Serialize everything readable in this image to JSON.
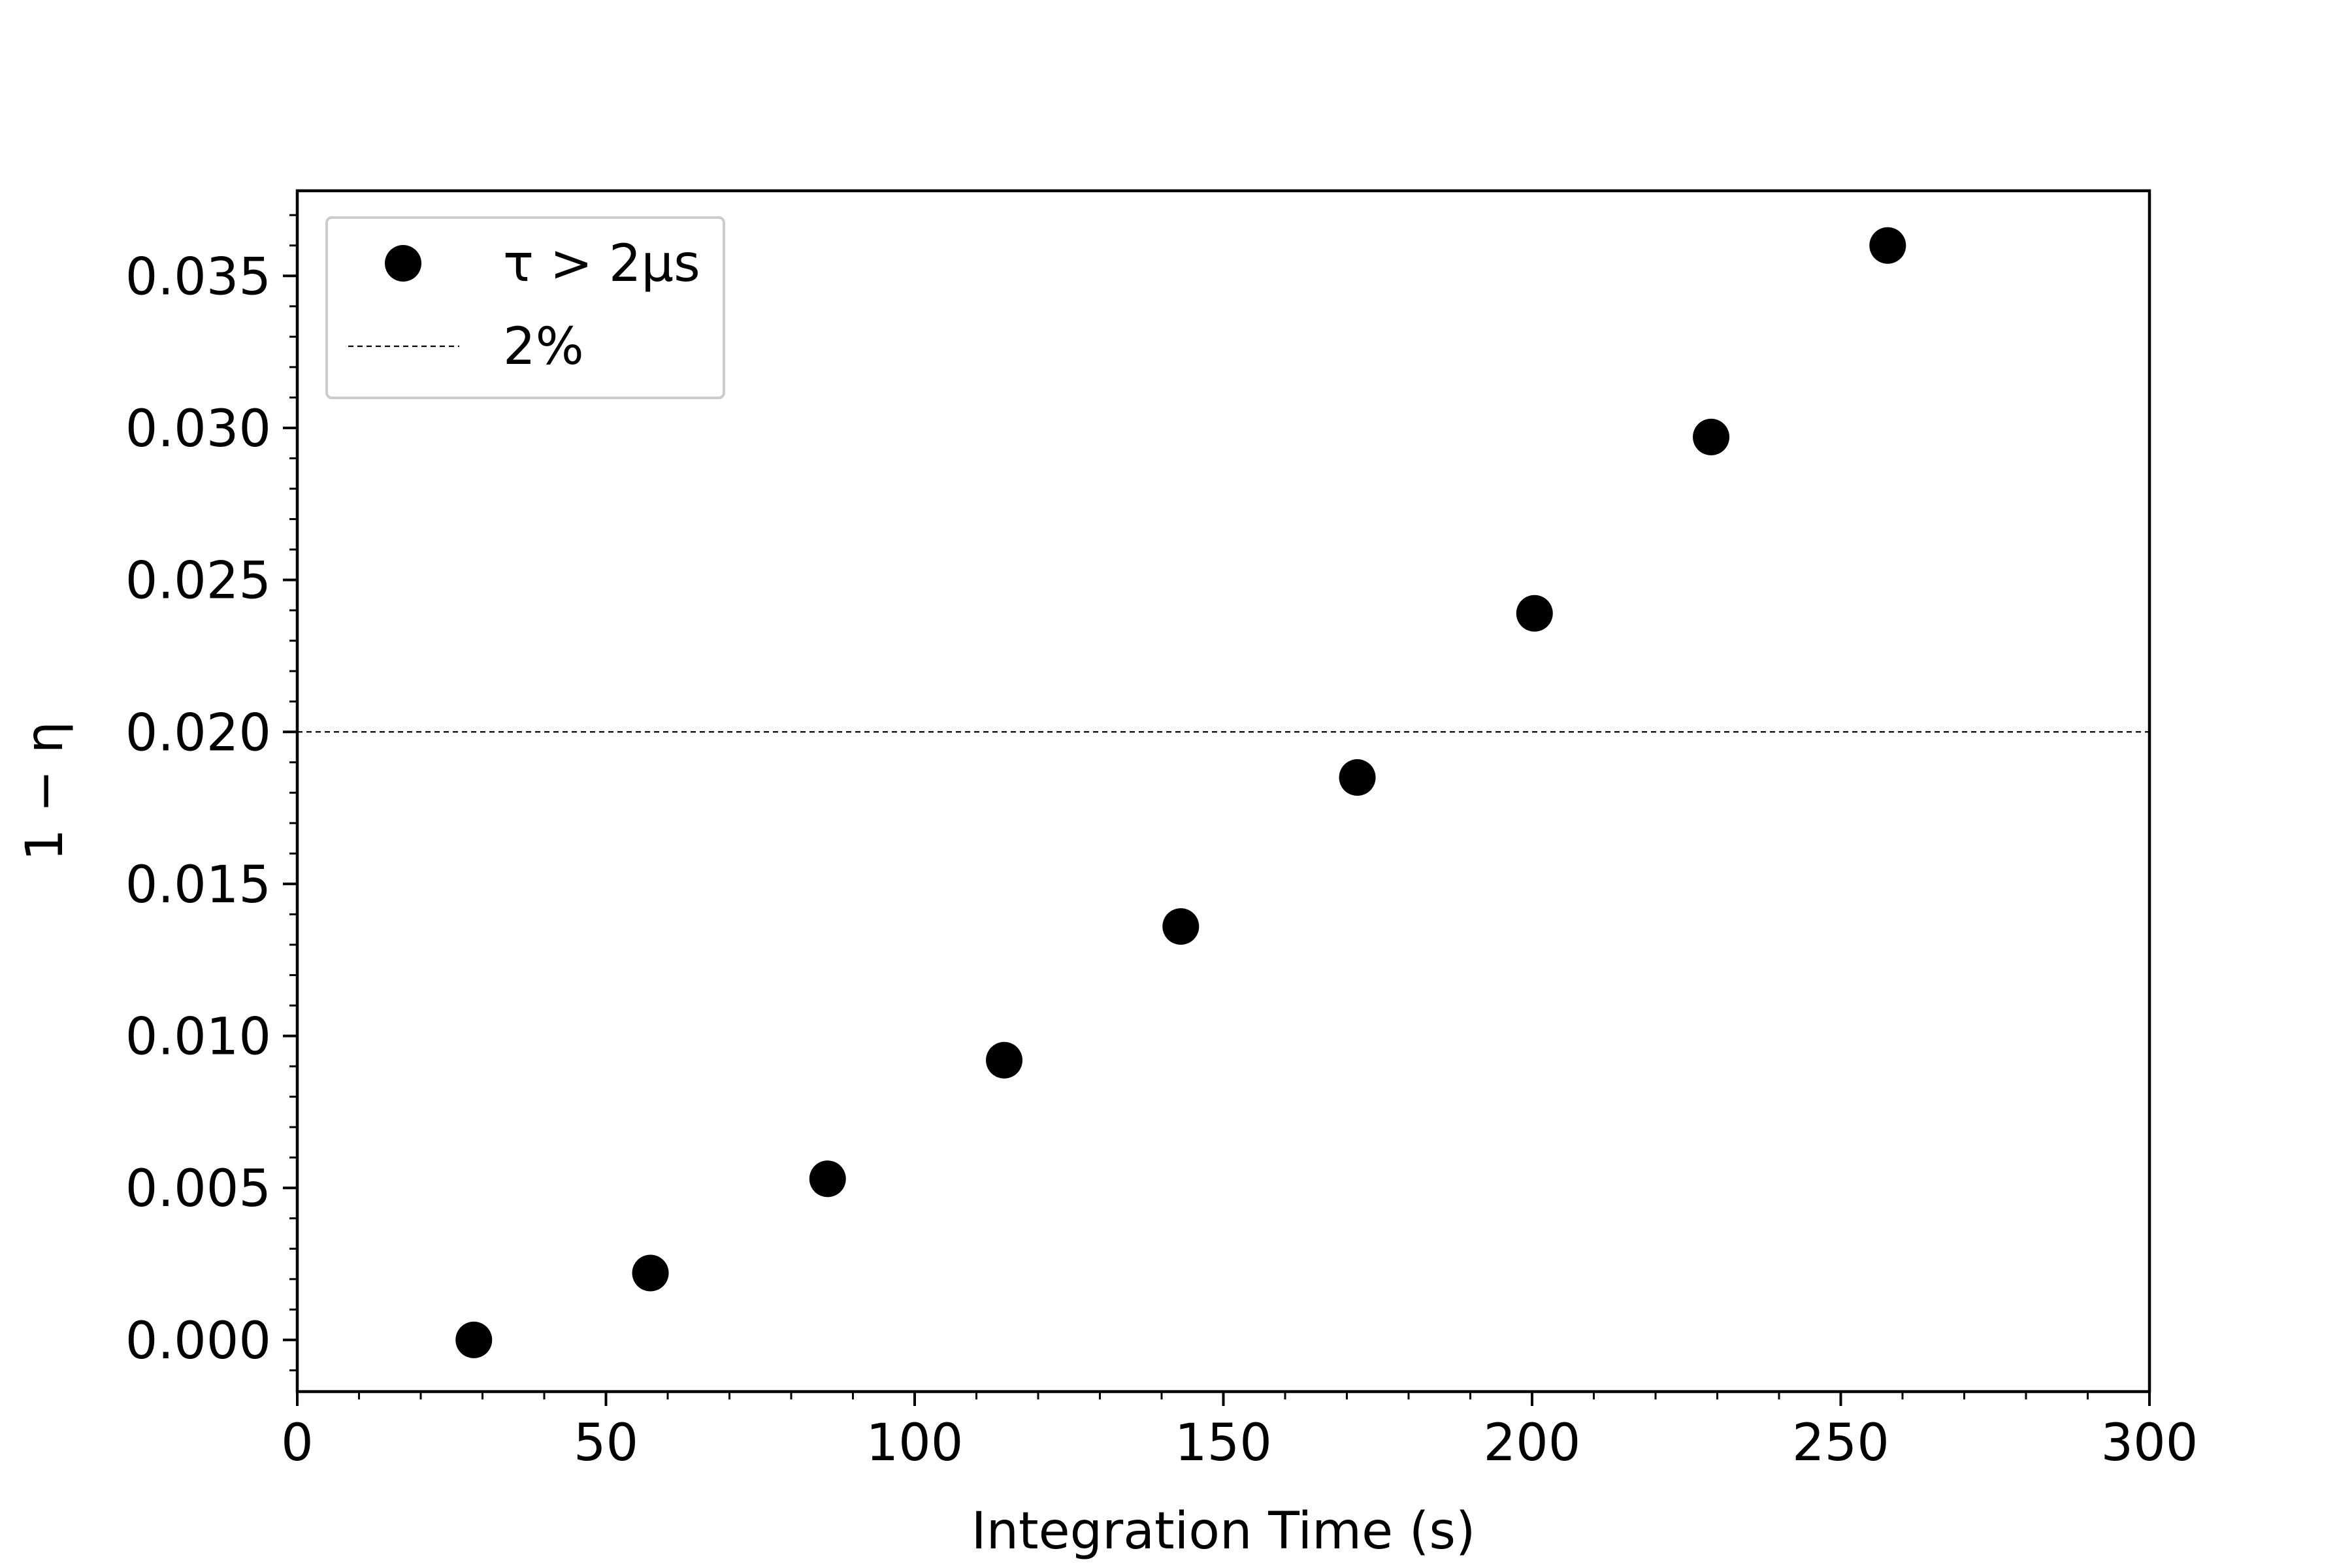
{
  "chart_data": {
    "type": "scatter",
    "xlabel": "Integration Time (s)",
    "ylabel": "1 − η",
    "xlim": [
      0,
      300
    ],
    "ylim": [
      -0.0017,
      0.0378
    ],
    "xticks": [
      0,
      50,
      100,
      150,
      200,
      250,
      300
    ],
    "xtick_labels": [
      "0",
      "50",
      "100",
      "150",
      "200",
      "250",
      "300"
    ],
    "yticks": [
      0,
      0.005,
      0.01,
      0.015,
      0.02,
      0.025,
      0.03,
      0.035
    ],
    "ytick_labels": [
      "0.000",
      "0.005",
      "0.010",
      "0.015",
      "0.020",
      "0.025",
      "0.030",
      "0.035"
    ],
    "x_minor_step": 10,
    "y_minor_step": 0.001,
    "grid": false,
    "legend": {
      "placement": "top-left",
      "entries": [
        {
          "label": "τ > 2μs",
          "marker": "circle"
        },
        {
          "label": "2%",
          "marker": "dashed-line"
        }
      ]
    },
    "series": [
      {
        "color": "#000000",
        "x": [
          28.6,
          57.2,
          85.9,
          114.5,
          143.1,
          171.7,
          200.4,
          229.0,
          257.6
        ],
        "y": [
          0.0,
          0.0022,
          0.0053,
          0.0092,
          0.0136,
          0.0185,
          0.0239,
          0.0297,
          0.036
        ]
      }
    ],
    "hline": {
      "y": 0.02,
      "style": "dashed",
      "color": "#000000"
    }
  }
}
